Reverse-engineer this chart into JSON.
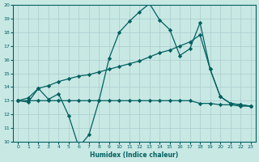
{
  "background_color": "#c8e8e4",
  "grid_color": "#aacccc",
  "line_color": "#006060",
  "xlabel": "Humidex (Indice chaleur)",
  "ylim": [
    10,
    20
  ],
  "xlim": [
    -0.5,
    23.5
  ],
  "yticks": [
    10,
    11,
    12,
    13,
    14,
    15,
    16,
    17,
    18,
    19,
    20
  ],
  "xticks": [
    0,
    1,
    2,
    3,
    4,
    5,
    6,
    7,
    8,
    9,
    10,
    11,
    12,
    13,
    14,
    15,
    16,
    17,
    18,
    19,
    20,
    21,
    22,
    23
  ],
  "line1_x": [
    0,
    1,
    2,
    3,
    4,
    5,
    6,
    7,
    8,
    9,
    10,
    11,
    12,
    13,
    14,
    15,
    16,
    17,
    18,
    19,
    20,
    21,
    22,
    23
  ],
  "line1_y": [
    13.0,
    12.9,
    13.9,
    13.1,
    13.5,
    11.9,
    9.6,
    10.5,
    13.0,
    16.1,
    18.0,
    18.8,
    19.5,
    20.1,
    18.9,
    18.2,
    16.3,
    16.8,
    18.7,
    15.3,
    13.3,
    12.8,
    12.7,
    12.6
  ],
  "line2_x": [
    0,
    1,
    2,
    3,
    4,
    5,
    6,
    7,
    8,
    9,
    10,
    11,
    12,
    13,
    14,
    15,
    16,
    17,
    18,
    19,
    20,
    21,
    22,
    23
  ],
  "line2_y": [
    13.0,
    13.0,
    13.0,
    13.0,
    13.0,
    13.0,
    13.0,
    13.0,
    13.0,
    13.0,
    13.0,
    13.0,
    13.0,
    13.0,
    13.0,
    13.0,
    13.0,
    13.0,
    12.8,
    12.8,
    12.7,
    12.7,
    12.6,
    12.6
  ],
  "line3_x": [
    0,
    1,
    2,
    3,
    4,
    5,
    6,
    7,
    8,
    9,
    10,
    11,
    12,
    13,
    14,
    15,
    16,
    17,
    18,
    19,
    20,
    21,
    22,
    23
  ],
  "line3_y": [
    13.0,
    13.2,
    13.9,
    14.1,
    14.4,
    14.6,
    14.8,
    14.9,
    15.1,
    15.3,
    15.5,
    15.7,
    15.9,
    16.2,
    16.5,
    16.7,
    17.0,
    17.3,
    17.8,
    15.3,
    13.3,
    12.8,
    12.7,
    12.6
  ]
}
